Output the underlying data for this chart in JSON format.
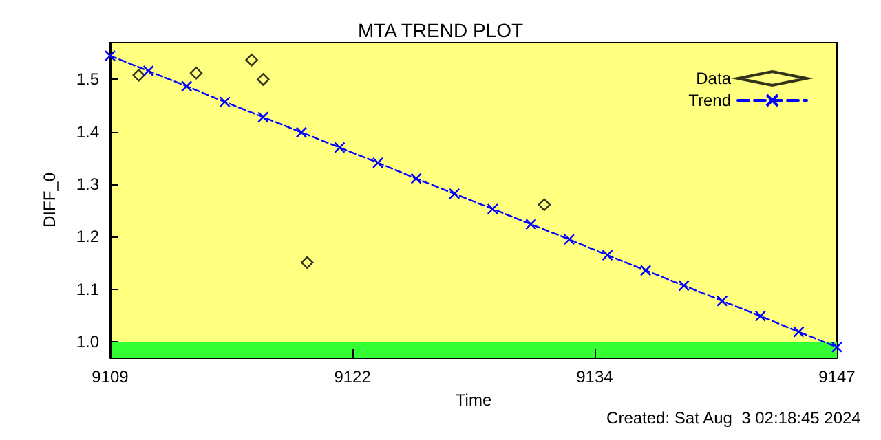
{
  "chart_data": {
    "type": "scatter",
    "title": "MTA TREND PLOT",
    "xlabel": "Time",
    "ylabel": "DIFF_0",
    "xlim": [
      9109,
      9147
    ],
    "xticks": [
      9109,
      {
        "value": 9121.67,
        "label": "9122"
      },
      {
        "value": 9134.33,
        "label": "9134"
      },
      9147
    ],
    "ylim": [
      0.97,
      1.57
    ],
    "yticks": [
      {
        "value": 1,
        "label": "1.0"
      },
      1.1,
      1.2,
      1.3,
      1.4,
      1.5
    ],
    "series": [
      {
        "name": "Data",
        "color": "#000000",
        "marker": "diamond",
        "x": [
          9110.5,
          9113.5,
          9116.4,
          9117.0,
          9119.3,
          9131.7
        ],
        "values": [
          1.508,
          1.512,
          1.537,
          1.5,
          1.151,
          1.261
        ]
      },
      {
        "name": "Trend",
        "type": "line",
        "color": "#0000ff",
        "marker": "cross",
        "line_style": "dashed",
        "x": [
          9109,
          9111,
          9113,
          9115,
          9117,
          9119,
          9121,
          9123,
          9125,
          9127,
          9129,
          9131,
          9133,
          9135,
          9137,
          9139,
          9141,
          9143,
          9145,
          9147
        ],
        "values": [
          1.545,
          1.516,
          1.487,
          1.457,
          1.428,
          1.399,
          1.37,
          1.341,
          1.311,
          1.282,
          1.253,
          1.224,
          1.195,
          1.165,
          1.136,
          1.107,
          1.078,
          1.049,
          1.019,
          0.99
        ]
      }
    ],
    "bands": [
      {
        "axis": "y",
        "from": 0.97,
        "to": 1.0,
        "color": "#33ff33"
      }
    ],
    "legend": "top right",
    "grid": false,
    "annotations": [
      "Created: Sat Aug  3 02:18:45 2024"
    ]
  }
}
